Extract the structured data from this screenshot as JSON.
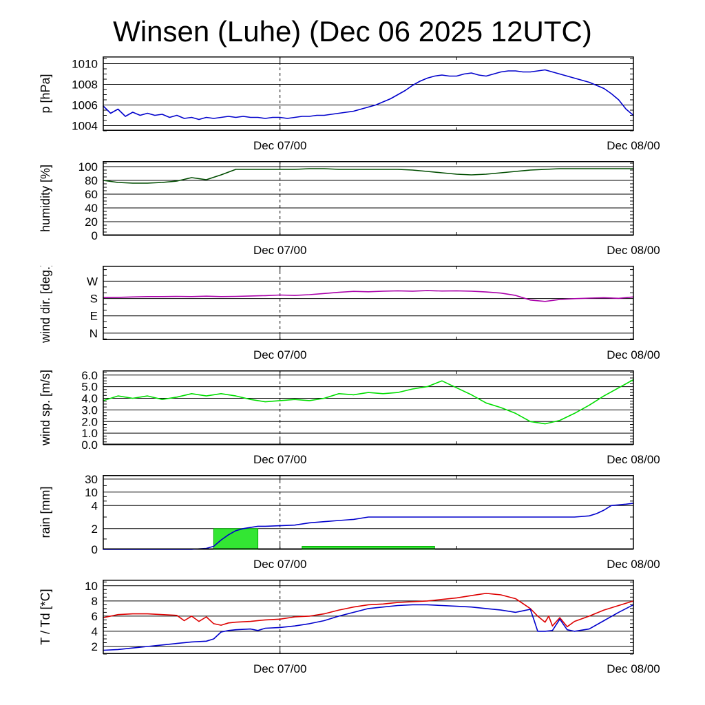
{
  "title": "Winsen (Luhe) (Dec 06 2025 12UTC)",
  "time_axis": {
    "t_start": 0,
    "t_end": 36,
    "major_ticks": [
      {
        "t": 12,
        "label": "Dec 07/00"
      },
      {
        "t": 36,
        "label": "Dec 08/00"
      }
    ],
    "minor_ticks": [
      24
    ],
    "dashed_line_t": 12
  },
  "chart_data": [
    {
      "id": "pressure",
      "type": "line",
      "ylabel": "p [hPa]",
      "ylim": [
        1003.5,
        1010.7
      ],
      "yticks": [
        1004,
        1006,
        1008,
        1010
      ],
      "ytick_labels": [
        "1004",
        "1006",
        "1008",
        "1010"
      ],
      "minor_ystep": 0.5,
      "series": [
        {
          "name": "pressure",
          "color": "#0000cc",
          "x_start": 0,
          "x_step": 0.5,
          "values": [
            1005.9,
            1005.2,
            1005.6,
            1004.9,
            1005.3,
            1005.0,
            1005.2,
            1005.0,
            1005.1,
            1004.8,
            1005.0,
            1004.7,
            1004.8,
            1004.6,
            1004.8,
            1004.7,
            1004.8,
            1004.9,
            1004.8,
            1004.9,
            1004.8,
            1004.8,
            1004.7,
            1004.8,
            1004.8,
            1004.7,
            1004.8,
            1004.9,
            1004.9,
            1005.0,
            1005.0,
            1005.1,
            1005.2,
            1005.3,
            1005.4,
            1005.6,
            1005.8,
            1006.0,
            1006.3,
            1006.6,
            1007.0,
            1007.4,
            1007.9,
            1008.3,
            1008.6,
            1008.8,
            1008.9,
            1008.8,
            1008.8,
            1009.0,
            1009.1,
            1008.9,
            1008.8,
            1009.0,
            1009.2,
            1009.3,
            1009.3,
            1009.2,
            1009.2,
            1009.3,
            1009.4,
            1009.2,
            1009.0,
            1008.8,
            1008.6,
            1008.4,
            1008.2,
            1007.9,
            1007.6,
            1007.1,
            1006.5,
            1005.6,
            1005.0
          ]
        }
      ]
    },
    {
      "id": "humidity",
      "type": "line",
      "ylabel": "humidity [%]",
      "ylim": [
        0,
        108
      ],
      "yticks": [
        0,
        20,
        40,
        60,
        80,
        100
      ],
      "ytick_labels": [
        "0",
        "20",
        "40",
        "60",
        "80",
        "100"
      ],
      "minor_ystep": 5,
      "series": [
        {
          "name": "humidity",
          "color": "#004d00",
          "x_start": 0,
          "x_step": 1,
          "values": [
            80,
            77,
            76,
            76,
            77,
            79,
            84,
            81,
            88,
            96,
            96,
            96,
            96,
            96,
            97,
            97,
            96,
            96,
            96,
            96,
            96,
            95,
            93,
            91,
            89,
            88,
            89,
            91,
            93,
            95,
            96,
            97,
            97,
            97,
            97,
            97,
            97
          ]
        }
      ]
    },
    {
      "id": "wind-direction",
      "type": "line",
      "ylabel": "wind dir. [deg.]",
      "ylim": [
        -36,
        350
      ],
      "yticks": [
        0,
        90,
        180,
        270
      ],
      "ytick_labels": [
        "N",
        "E",
        "S",
        "W"
      ],
      "minor_ystep": 30,
      "series": [
        {
          "name": "wind-dir",
          "color": "#aa00aa",
          "x_start": 0,
          "x_step": 1,
          "values": [
            185,
            186,
            188,
            190,
            190,
            191,
            190,
            192,
            190,
            191,
            193,
            195,
            198,
            196,
            200,
            206,
            212,
            217,
            215,
            218,
            220,
            218,
            221,
            219,
            220,
            218,
            214,
            208,
            196,
            172,
            165,
            175,
            179,
            182,
            184,
            181,
            188
          ]
        }
      ]
    },
    {
      "id": "wind-speed",
      "type": "line",
      "ylabel": "wind sp. [m/s]",
      "ylim": [
        0,
        6.4
      ],
      "yticks": [
        0,
        1,
        2,
        3,
        4,
        5,
        6
      ],
      "ytick_labels": [
        "0.0",
        "1.0",
        "2.0",
        "3.0",
        "4.0",
        "5.0",
        "6.0"
      ],
      "minor_ystep": 0.25,
      "series": [
        {
          "name": "wind-speed",
          "color": "#00dd00",
          "x_start": 0,
          "x_step": 1,
          "values": [
            3.8,
            4.2,
            4.0,
            4.2,
            3.9,
            4.1,
            4.4,
            4.2,
            4.4,
            4.2,
            3.9,
            3.7,
            3.8,
            3.9,
            3.8,
            4.0,
            4.4,
            4.3,
            4.5,
            4.4,
            4.5,
            4.8,
            5.0,
            5.5,
            4.9,
            4.3,
            3.6,
            3.2,
            2.7,
            2.0,
            1.8,
            2.1,
            2.7,
            3.4,
            4.2,
            4.9,
            5.6
          ]
        }
      ]
    },
    {
      "id": "rain",
      "type": "bar-line",
      "ylabel": "rain [mm]",
      "yscale": {
        "breakpoints": [
          0,
          2,
          4,
          10,
          30,
          100
        ],
        "fractions": [
          0,
          0.28,
          0.59,
          0.77,
          0.945,
          1.0
        ]
      },
      "yticks": [
        0,
        2,
        4,
        10,
        30
      ],
      "ytick_labels": [
        "0",
        "2",
        "4",
        "10",
        "30"
      ],
      "minor_yticks": [
        1,
        3,
        6,
        8,
        20
      ],
      "bar_color": "#33e633",
      "bar_edge_color": "#00b000",
      "bars": [
        {
          "t0": 7.5,
          "t1": 10.5,
          "amount": 2.0
        },
        {
          "t0": 13.5,
          "t1": 22.5,
          "amount": 0.3
        }
      ],
      "series": [
        {
          "name": "rain-accumulated",
          "color": "#0000cc",
          "x": [
            0,
            6,
            6.5,
            7,
            7.5,
            8,
            8.5,
            9,
            9.5,
            10,
            10.5,
            11,
            12,
            13,
            14,
            15,
            16,
            17,
            18,
            20,
            22,
            24,
            26,
            28,
            30,
            32,
            33,
            33.5,
            34,
            34.5,
            35,
            35.5,
            36
          ],
          "values": [
            0,
            0,
            0.05,
            0.1,
            0.3,
            0.9,
            1.4,
            1.8,
            2.0,
            2.1,
            2.2,
            2.2,
            2.25,
            2.3,
            2.5,
            2.6,
            2.7,
            2.8,
            3.0,
            3.0,
            3.0,
            3.0,
            3.0,
            3.0,
            3.0,
            3.0,
            3.1,
            3.3,
            3.6,
            4.0,
            4.3,
            4.6,
            5.0
          ]
        }
      ]
    },
    {
      "id": "temperature",
      "type": "line",
      "ylabel": "T / Td [*C]",
      "ylim": [
        1,
        10.8
      ],
      "yticks": [
        2,
        4,
        6,
        8,
        10
      ],
      "ytick_labels": [
        "2",
        "4",
        "6",
        "8",
        "10"
      ],
      "minor_ystep": 0.5,
      "series": [
        {
          "name": "temperature",
          "color": "#dd0000",
          "x": [
            0,
            1,
            2,
            3,
            4,
            5,
            5.5,
            6,
            6.5,
            7,
            7.5,
            8,
            8.5,
            9,
            10,
            11,
            12,
            13,
            14,
            15,
            16,
            17,
            18,
            19,
            20,
            21,
            22,
            23,
            24,
            25,
            26,
            26.5,
            27,
            28,
            29,
            29.5,
            30,
            30.25,
            30.5,
            31,
            31.5,
            32,
            33,
            34,
            35,
            36
          ],
          "values": [
            5.8,
            6.2,
            6.3,
            6.3,
            6.2,
            6.1,
            5.4,
            6.0,
            5.3,
            5.9,
            5.0,
            4.8,
            5.1,
            5.2,
            5.3,
            5.5,
            5.6,
            5.9,
            6.0,
            6.3,
            6.8,
            7.2,
            7.5,
            7.6,
            7.8,
            7.9,
            8.0,
            8.2,
            8.4,
            8.7,
            9.0,
            8.9,
            8.8,
            8.3,
            7.0,
            6.0,
            5.2,
            6.0,
            4.7,
            5.8,
            4.6,
            5.3,
            6.0,
            6.8,
            7.4,
            8.0
          ]
        },
        {
          "name": "dewpoint",
          "color": "#0000cc",
          "x": [
            0,
            1,
            2,
            3,
            4,
            5,
            6,
            7,
            7.5,
            8,
            8.5,
            9,
            10,
            10.5,
            11,
            12,
            13,
            14,
            15,
            16,
            17,
            18,
            19,
            20,
            21,
            22,
            23,
            24,
            25,
            26,
            27,
            28,
            28.5,
            29,
            29.25,
            29.5,
            30,
            30.5,
            31,
            31.5,
            32,
            33,
            34,
            35,
            36
          ],
          "values": [
            1.5,
            1.6,
            1.8,
            2.0,
            2.2,
            2.4,
            2.6,
            2.7,
            3.0,
            3.9,
            4.1,
            4.2,
            4.3,
            4.1,
            4.4,
            4.5,
            4.7,
            5.0,
            5.4,
            6.0,
            6.5,
            7.0,
            7.2,
            7.4,
            7.5,
            7.5,
            7.4,
            7.3,
            7.2,
            7.0,
            6.8,
            6.5,
            6.7,
            6.9,
            5.5,
            4.0,
            4.0,
            4.1,
            5.6,
            4.2,
            4.0,
            4.3,
            5.4,
            6.5,
            7.5
          ]
        }
      ]
    }
  ]
}
